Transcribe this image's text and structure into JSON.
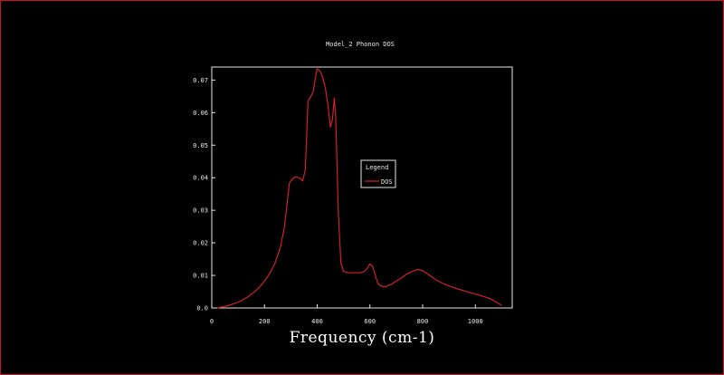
{
  "chart_data": {
    "type": "line",
    "title": "Model_2 Phonon DOS",
    "xlabel": "Frequency (cm-1)",
    "ylabel": "",
    "xlim": [
      0,
      1140
    ],
    "ylim": [
      0,
      0.074
    ],
    "x_ticks": [
      0,
      200,
      400,
      600,
      800,
      1000
    ],
    "x_tick_labels": [
      "0",
      "200",
      "400",
      "600",
      "800",
      "1000"
    ],
    "y_ticks": [
      0,
      0.01,
      0.02,
      0.03,
      0.04,
      0.05,
      0.06,
      0.07
    ],
    "y_tick_labels": [
      "0.0",
      "0.01",
      "0.02",
      "0.03",
      "0.04",
      "0.05",
      "0.06",
      "0.07"
    ],
    "grid": false,
    "legend": {
      "title": "Legend",
      "position": "right",
      "entries": [
        "DOS"
      ]
    },
    "series": [
      {
        "name": "DOS",
        "color": "#d0202a",
        "x": [
          20,
          40,
          60,
          80,
          100,
          120,
          140,
          160,
          180,
          200,
          220,
          240,
          260,
          275,
          285,
          295,
          305,
          315,
          325,
          335,
          345,
          355,
          365,
          375,
          385,
          395,
          400,
          410,
          420,
          430,
          440,
          450,
          458,
          465,
          470,
          475,
          480,
          490,
          500,
          520,
          540,
          560,
          580,
          590,
          600,
          610,
          620,
          630,
          640,
          660,
          680,
          700,
          720,
          740,
          760,
          780,
          800,
          820,
          840,
          860,
          880,
          900,
          920,
          940,
          960,
          980,
          1000,
          1020,
          1040,
          1060,
          1080,
          1100
        ],
        "values": [
          0.0,
          0.0003,
          0.0007,
          0.0012,
          0.0018,
          0.0026,
          0.0036,
          0.0048,
          0.0063,
          0.0082,
          0.0106,
          0.0138,
          0.0185,
          0.0245,
          0.0315,
          0.0385,
          0.0395,
          0.0402,
          0.0402,
          0.0398,
          0.039,
          0.0425,
          0.0635,
          0.0648,
          0.0665,
          0.0715,
          0.0735,
          0.0728,
          0.071,
          0.068,
          0.063,
          0.0555,
          0.058,
          0.0645,
          0.0585,
          0.045,
          0.0295,
          0.0138,
          0.0112,
          0.0108,
          0.0108,
          0.0108,
          0.0112,
          0.0122,
          0.0135,
          0.0128,
          0.0102,
          0.0075,
          0.0068,
          0.0065,
          0.0072,
          0.0083,
          0.0093,
          0.0104,
          0.0112,
          0.0118,
          0.0115,
          0.0104,
          0.0092,
          0.0082,
          0.0074,
          0.0068,
          0.0062,
          0.0057,
          0.0052,
          0.0047,
          0.0043,
          0.0038,
          0.0033,
          0.0027,
          0.0018,
          0.0008
        ]
      }
    ]
  }
}
